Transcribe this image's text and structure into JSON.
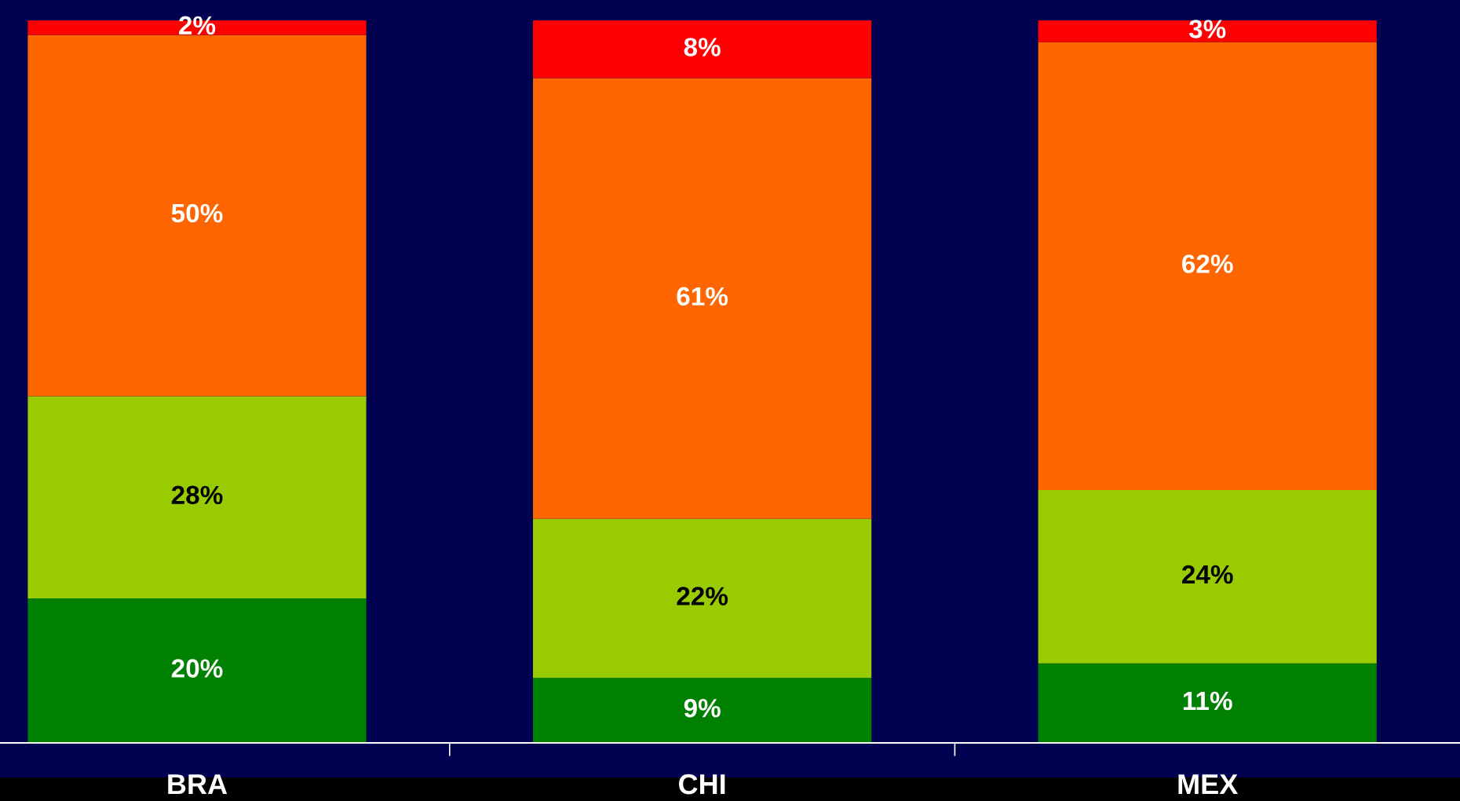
{
  "chart_data": {
    "type": "bar",
    "stacked": true,
    "categories": [
      "BRA",
      "CHI",
      "MEX"
    ],
    "series": [
      {
        "color": "#008000",
        "values": [
          20,
          9,
          11
        ],
        "value_labels": [
          "20%",
          "9%",
          "11%"
        ]
      },
      {
        "color": "#99cc00",
        "values": [
          28,
          22,
          24
        ],
        "value_labels": [
          "28%",
          "22%",
          "24%"
        ]
      },
      {
        "color": "#ff6600",
        "values": [
          50,
          61,
          62
        ],
        "value_labels": [
          "50%",
          "61%",
          "62%"
        ]
      },
      {
        "color": "#ff0000",
        "values": [
          2,
          8,
          3
        ],
        "value_labels": [
          "2%",
          "8%",
          "3%"
        ]
      }
    ],
    "tick_labels": "x",
    "grid": false,
    "legend": false
  }
}
